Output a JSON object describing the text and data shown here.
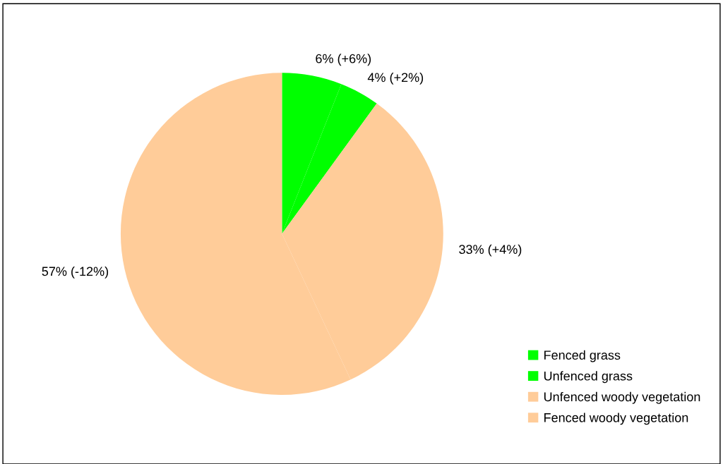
{
  "chart_data": {
    "type": "pie",
    "categories": [
      "Fenced grass",
      "Unfenced grass",
      "Unfenced woody vegetation",
      "Fenced woody vegetation"
    ],
    "values": [
      6,
      4,
      33,
      57
    ],
    "colors": [
      "#00ff00",
      "#00ff00",
      "#ffcc99",
      "#ffcc99"
    ],
    "value_labels": [
      "6% (+6%)",
      "4% (+2%)",
      "33% (+4%)",
      "57% (-12%)"
    ],
    "legend": "bottom right"
  }
}
